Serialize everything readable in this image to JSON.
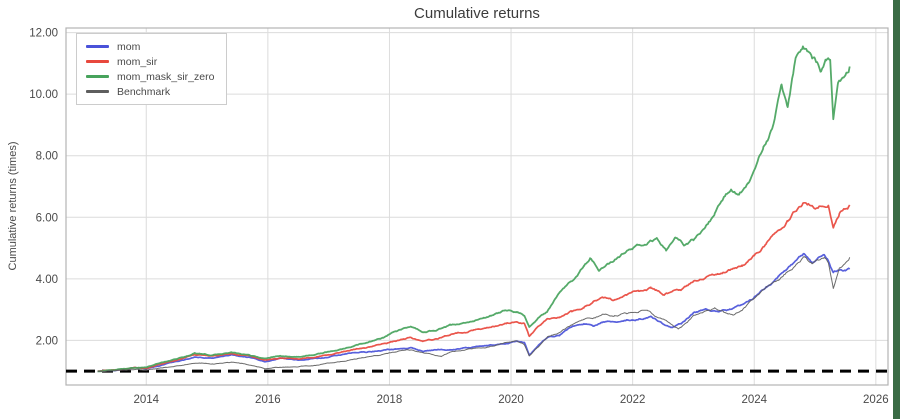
{
  "window": {
    "edge_strip_color": "#3a6b45",
    "background": "#ffffff"
  },
  "chart_data": {
    "type": "line",
    "title": "Cumulative returns",
    "xlabel": "",
    "ylabel": "Cumulative returns (times)",
    "xlim": [
      2012.68,
      2026.2
    ],
    "ylim": [
      0.55,
      12.15
    ],
    "x_ticks": [
      2014,
      2016,
      2018,
      2020,
      2022,
      2024,
      2026
    ],
    "y_ticks": [
      2,
      4,
      6,
      8,
      10,
      12
    ],
    "y_tick_format": "2dp",
    "grid": true,
    "legend_position": "upper-left",
    "baseline": {
      "value": 1.0,
      "style": "dashed",
      "color": "#000000",
      "width": 3
    },
    "series": [
      {
        "name": "mom",
        "color": "#4a52d9",
        "width": 1.7,
        "points": [
          [
            2013.2,
            1.0
          ],
          [
            2013.5,
            1.03
          ],
          [
            2013.8,
            1.12
          ],
          [
            2014.0,
            1.1
          ],
          [
            2014.3,
            1.22
          ],
          [
            2014.6,
            1.35
          ],
          [
            2014.8,
            1.46
          ],
          [
            2015.1,
            1.42
          ],
          [
            2015.4,
            1.52
          ],
          [
            2015.7,
            1.45
          ],
          [
            2015.95,
            1.32
          ],
          [
            2016.2,
            1.4
          ],
          [
            2016.5,
            1.35
          ],
          [
            2016.8,
            1.42
          ],
          [
            2017.0,
            1.45
          ],
          [
            2017.3,
            1.55
          ],
          [
            2017.6,
            1.62
          ],
          [
            2017.9,
            1.68
          ],
          [
            2018.1,
            1.72
          ],
          [
            2018.35,
            1.76
          ],
          [
            2018.55,
            1.65
          ],
          [
            2018.8,
            1.7
          ],
          [
            2019.0,
            1.71
          ],
          [
            2019.3,
            1.76
          ],
          [
            2019.6,
            1.82
          ],
          [
            2019.9,
            1.9
          ],
          [
            2020.1,
            1.97
          ],
          [
            2020.22,
            1.9
          ],
          [
            2020.3,
            1.52
          ],
          [
            2020.45,
            1.85
          ],
          [
            2020.6,
            2.1
          ],
          [
            2020.8,
            2.18
          ],
          [
            2021.0,
            2.45
          ],
          [
            2021.2,
            2.55
          ],
          [
            2021.35,
            2.48
          ],
          [
            2021.5,
            2.62
          ],
          [
            2021.7,
            2.58
          ],
          [
            2021.9,
            2.66
          ],
          [
            2022.1,
            2.7
          ],
          [
            2022.3,
            2.76
          ],
          [
            2022.5,
            2.55
          ],
          [
            2022.65,
            2.42
          ],
          [
            2022.8,
            2.55
          ],
          [
            2023.0,
            2.88
          ],
          [
            2023.2,
            3.02
          ],
          [
            2023.4,
            2.95
          ],
          [
            2023.6,
            3.0
          ],
          [
            2023.8,
            3.15
          ],
          [
            2024.0,
            3.4
          ],
          [
            2024.2,
            3.75
          ],
          [
            2024.4,
            4.1
          ],
          [
            2024.55,
            4.4
          ],
          [
            2024.7,
            4.65
          ],
          [
            2024.82,
            4.83
          ],
          [
            2024.95,
            4.55
          ],
          [
            2025.05,
            4.7
          ],
          [
            2025.15,
            4.76
          ],
          [
            2025.22,
            4.6
          ],
          [
            2025.3,
            4.2
          ],
          [
            2025.4,
            4.32
          ],
          [
            2025.5,
            4.28
          ],
          [
            2025.57,
            4.32
          ]
        ]
      },
      {
        "name": "mom_sir",
        "color": "#e8483d",
        "width": 1.7,
        "points": [
          [
            2013.2,
            1.0
          ],
          [
            2013.5,
            1.04
          ],
          [
            2013.8,
            1.1
          ],
          [
            2014.0,
            1.09
          ],
          [
            2014.3,
            1.25
          ],
          [
            2014.6,
            1.4
          ],
          [
            2014.8,
            1.52
          ],
          [
            2015.1,
            1.48
          ],
          [
            2015.4,
            1.55
          ],
          [
            2015.7,
            1.48
          ],
          [
            2015.95,
            1.35
          ],
          [
            2016.2,
            1.42
          ],
          [
            2016.5,
            1.4
          ],
          [
            2016.8,
            1.48
          ],
          [
            2017.0,
            1.55
          ],
          [
            2017.3,
            1.65
          ],
          [
            2017.6,
            1.76
          ],
          [
            2017.9,
            1.88
          ],
          [
            2018.1,
            1.98
          ],
          [
            2018.35,
            2.1
          ],
          [
            2018.55,
            1.96
          ],
          [
            2018.8,
            2.05
          ],
          [
            2019.0,
            2.2
          ],
          [
            2019.3,
            2.3
          ],
          [
            2019.6,
            2.42
          ],
          [
            2019.9,
            2.55
          ],
          [
            2020.1,
            2.62
          ],
          [
            2020.22,
            2.55
          ],
          [
            2020.3,
            2.12
          ],
          [
            2020.45,
            2.45
          ],
          [
            2020.6,
            2.7
          ],
          [
            2020.8,
            2.78
          ],
          [
            2021.0,
            2.95
          ],
          [
            2021.2,
            3.1
          ],
          [
            2021.35,
            3.25
          ],
          [
            2021.5,
            3.38
          ],
          [
            2021.7,
            3.3
          ],
          [
            2021.9,
            3.48
          ],
          [
            2022.1,
            3.6
          ],
          [
            2022.3,
            3.7
          ],
          [
            2022.5,
            3.52
          ],
          [
            2022.65,
            3.58
          ],
          [
            2022.8,
            3.65
          ],
          [
            2023.0,
            3.9
          ],
          [
            2023.2,
            4.05
          ],
          [
            2023.4,
            4.18
          ],
          [
            2023.6,
            4.3
          ],
          [
            2023.8,
            4.45
          ],
          [
            2024.0,
            4.76
          ],
          [
            2024.2,
            5.15
          ],
          [
            2024.4,
            5.6
          ],
          [
            2024.55,
            5.95
          ],
          [
            2024.7,
            6.3
          ],
          [
            2024.8,
            6.5
          ],
          [
            2024.95,
            6.4
          ],
          [
            2025.05,
            6.3
          ],
          [
            2025.15,
            6.42
          ],
          [
            2025.22,
            6.45
          ],
          [
            2025.3,
            5.7
          ],
          [
            2025.4,
            6.15
          ],
          [
            2025.5,
            6.3
          ],
          [
            2025.57,
            6.4
          ]
        ]
      },
      {
        "name": "mom_mask_sir_zero",
        "color": "#47a35c",
        "width": 1.8,
        "points": [
          [
            2013.2,
            1.0
          ],
          [
            2013.5,
            1.04
          ],
          [
            2013.8,
            1.11
          ],
          [
            2014.0,
            1.12
          ],
          [
            2014.3,
            1.3
          ],
          [
            2014.6,
            1.45
          ],
          [
            2014.8,
            1.58
          ],
          [
            2015.1,
            1.52
          ],
          [
            2015.4,
            1.6
          ],
          [
            2015.7,
            1.5
          ],
          [
            2015.95,
            1.4
          ],
          [
            2016.2,
            1.5
          ],
          [
            2016.5,
            1.46
          ],
          [
            2016.8,
            1.55
          ],
          [
            2017.0,
            1.62
          ],
          [
            2017.3,
            1.75
          ],
          [
            2017.6,
            1.92
          ],
          [
            2017.9,
            2.1
          ],
          [
            2018.1,
            2.28
          ],
          [
            2018.35,
            2.42
          ],
          [
            2018.55,
            2.25
          ],
          [
            2018.8,
            2.35
          ],
          [
            2019.0,
            2.48
          ],
          [
            2019.3,
            2.6
          ],
          [
            2019.6,
            2.75
          ],
          [
            2019.9,
            2.95
          ],
          [
            2020.1,
            2.92
          ],
          [
            2020.22,
            2.8
          ],
          [
            2020.3,
            2.42
          ],
          [
            2020.45,
            2.75
          ],
          [
            2020.6,
            2.95
          ],
          [
            2020.8,
            3.55
          ],
          [
            2021.0,
            3.9
          ],
          [
            2021.2,
            4.4
          ],
          [
            2021.3,
            4.65
          ],
          [
            2021.45,
            4.3
          ],
          [
            2021.6,
            4.5
          ],
          [
            2021.8,
            4.75
          ],
          [
            2022.0,
            5.0
          ],
          [
            2022.2,
            5.15
          ],
          [
            2022.4,
            5.3
          ],
          [
            2022.55,
            4.9
          ],
          [
            2022.7,
            5.45
          ],
          [
            2022.85,
            5.1
          ],
          [
            2023.0,
            5.3
          ],
          [
            2023.2,
            5.75
          ],
          [
            2023.35,
            6.1
          ],
          [
            2023.5,
            6.55
          ],
          [
            2023.62,
            6.9
          ],
          [
            2023.75,
            6.7
          ],
          [
            2023.9,
            7.1
          ],
          [
            2024.0,
            7.6
          ],
          [
            2024.15,
            8.3
          ],
          [
            2024.3,
            8.9
          ],
          [
            2024.45,
            10.3
          ],
          [
            2024.55,
            9.6
          ],
          [
            2024.68,
            11.1
          ],
          [
            2024.8,
            11.6
          ],
          [
            2024.9,
            11.35
          ],
          [
            2025.0,
            11.1
          ],
          [
            2025.1,
            10.75
          ],
          [
            2025.18,
            11.0
          ],
          [
            2025.25,
            11.05
          ],
          [
            2025.3,
            9.2
          ],
          [
            2025.38,
            10.45
          ],
          [
            2025.48,
            10.7
          ],
          [
            2025.57,
            10.9
          ]
        ]
      },
      {
        "name": "Benchmark",
        "color": "#5e5e5e",
        "width": 1.0,
        "points": [
          [
            2013.2,
            1.0
          ],
          [
            2013.5,
            1.01
          ],
          [
            2013.8,
            1.05
          ],
          [
            2014.0,
            1.04
          ],
          [
            2014.3,
            1.12
          ],
          [
            2014.6,
            1.2
          ],
          [
            2014.8,
            1.26
          ],
          [
            2015.1,
            1.24
          ],
          [
            2015.4,
            1.3
          ],
          [
            2015.7,
            1.2
          ],
          [
            2015.95,
            1.08
          ],
          [
            2016.2,
            1.12
          ],
          [
            2016.5,
            1.15
          ],
          [
            2016.8,
            1.2
          ],
          [
            2017.0,
            1.26
          ],
          [
            2017.3,
            1.35
          ],
          [
            2017.6,
            1.45
          ],
          [
            2017.9,
            1.55
          ],
          [
            2018.1,
            1.65
          ],
          [
            2018.35,
            1.7
          ],
          [
            2018.6,
            1.6
          ],
          [
            2018.85,
            1.48
          ],
          [
            2019.0,
            1.62
          ],
          [
            2019.3,
            1.72
          ],
          [
            2019.6,
            1.78
          ],
          [
            2019.9,
            1.9
          ],
          [
            2020.1,
            1.96
          ],
          [
            2020.22,
            1.85
          ],
          [
            2020.3,
            1.48
          ],
          [
            2020.45,
            1.8
          ],
          [
            2020.6,
            2.12
          ],
          [
            2020.8,
            2.25
          ],
          [
            2021.0,
            2.5
          ],
          [
            2021.2,
            2.65
          ],
          [
            2021.35,
            2.72
          ],
          [
            2021.5,
            2.82
          ],
          [
            2021.7,
            2.78
          ],
          [
            2021.9,
            2.88
          ],
          [
            2022.1,
            2.95
          ],
          [
            2022.25,
            3.0
          ],
          [
            2022.4,
            2.75
          ],
          [
            2022.55,
            2.62
          ],
          [
            2022.75,
            2.35
          ],
          [
            2022.9,
            2.55
          ],
          [
            2023.0,
            2.78
          ],
          [
            2023.2,
            2.95
          ],
          [
            2023.35,
            3.02
          ],
          [
            2023.5,
            2.9
          ],
          [
            2023.65,
            2.85
          ],
          [
            2023.8,
            3.0
          ],
          [
            2024.0,
            3.35
          ],
          [
            2024.2,
            3.7
          ],
          [
            2024.4,
            4.0
          ],
          [
            2024.55,
            4.25
          ],
          [
            2024.7,
            4.5
          ],
          [
            2024.82,
            4.7
          ],
          [
            2024.95,
            4.45
          ],
          [
            2025.05,
            4.6
          ],
          [
            2025.15,
            4.68
          ],
          [
            2025.22,
            4.5
          ],
          [
            2025.3,
            3.72
          ],
          [
            2025.4,
            4.4
          ],
          [
            2025.5,
            4.55
          ],
          [
            2025.57,
            4.7
          ]
        ]
      }
    ],
    "grid_color": "#dcdcdc",
    "border_color": "#b3b3b3",
    "tick_label_color": "#4a4a4a"
  }
}
